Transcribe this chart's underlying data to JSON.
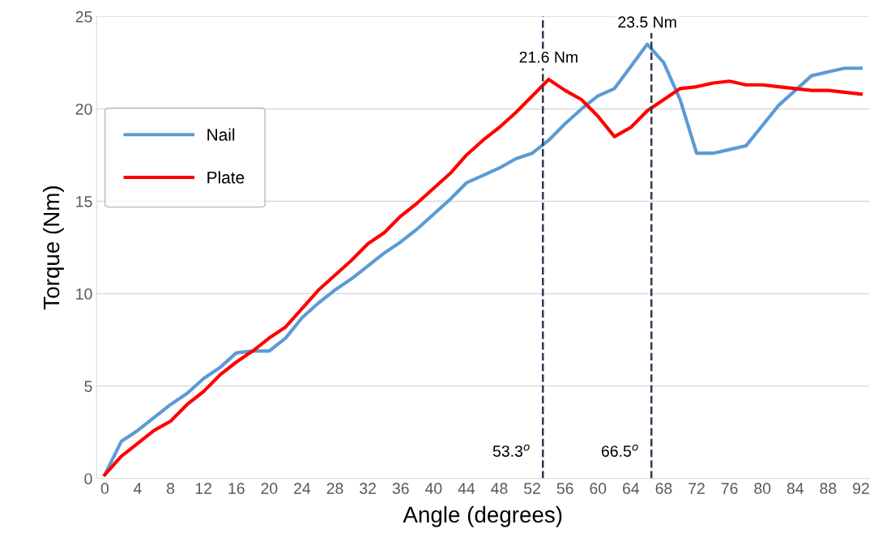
{
  "chart_data": {
    "type": "line",
    "xlabel": "Angle (degrees)",
    "ylabel": "Torque (Nm)",
    "x": [
      0,
      2,
      4,
      6,
      8,
      10,
      12,
      14,
      16,
      18,
      20,
      22,
      24,
      26,
      28,
      30,
      32,
      34,
      36,
      38,
      40,
      42,
      44,
      46,
      48,
      50,
      52,
      54,
      56,
      58,
      60,
      62,
      64,
      66,
      68,
      70,
      72,
      74,
      76,
      78,
      80,
      82,
      84,
      86,
      88,
      90,
      92
    ],
    "series": [
      {
        "name": "Nail",
        "color": "#5b9bd5",
        "values": [
          0.2,
          2.0,
          2.6,
          3.3,
          4.0,
          4.6,
          5.4,
          6.0,
          6.8,
          6.9,
          6.9,
          7.6,
          8.7,
          9.5,
          10.2,
          10.8,
          11.5,
          12.2,
          12.8,
          13.5,
          14.3,
          15.1,
          16.0,
          16.4,
          16.8,
          17.3,
          17.6,
          18.3,
          19.2,
          20.0,
          20.7,
          21.1,
          22.3,
          23.5,
          22.5,
          20.5,
          17.6,
          17.6,
          17.8,
          18.0,
          19.1,
          20.2,
          21.0,
          21.8,
          22.0,
          22.2,
          22.2
        ]
      },
      {
        "name": "Plate",
        "color": "#ff0000",
        "values": [
          0.2,
          1.2,
          1.9,
          2.6,
          3.1,
          4.0,
          4.7,
          5.6,
          6.3,
          6.9,
          7.6,
          8.2,
          9.2,
          10.2,
          11.0,
          11.8,
          12.7,
          13.3,
          14.2,
          14.9,
          15.7,
          16.5,
          17.5,
          18.3,
          19.0,
          19.8,
          20.7,
          21.6,
          21.0,
          20.5,
          19.6,
          18.5,
          19.0,
          19.9,
          20.5,
          21.1,
          21.2,
          21.4,
          21.5,
          21.3,
          21.3,
          21.2,
          21.1,
          21.0,
          21.0,
          20.9,
          20.8
        ]
      }
    ],
    "xlim": [
      -1,
      93
    ],
    "xticks": [
      0,
      4,
      8,
      12,
      16,
      20,
      24,
      28,
      32,
      36,
      40,
      44,
      48,
      52,
      56,
      60,
      64,
      68,
      72,
      76,
      80,
      84,
      88,
      92
    ],
    "ylim": [
      0,
      25
    ],
    "yticks": [
      0,
      5,
      10,
      15,
      20,
      25
    ],
    "ref_lines": [
      {
        "axis": "x",
        "value": 53.3,
        "label": "53.3$^{o}$",
        "color": "#2f3b52",
        "line_style": "dashed"
      },
      {
        "axis": "x",
        "value": 66.5,
        "label": "66.5$^{o}$",
        "color": "#2f3b52",
        "line_style": "dashed"
      }
    ],
    "annotations": [
      {
        "text": "21.6 Nm",
        "x": 54,
        "y": 21.6
      },
      {
        "text": "23.5 Nm",
        "x": 66,
        "y": 23.5
      }
    ],
    "grid": "y",
    "legend": "top left",
    "line_style": "solid",
    "marker": "none"
  }
}
